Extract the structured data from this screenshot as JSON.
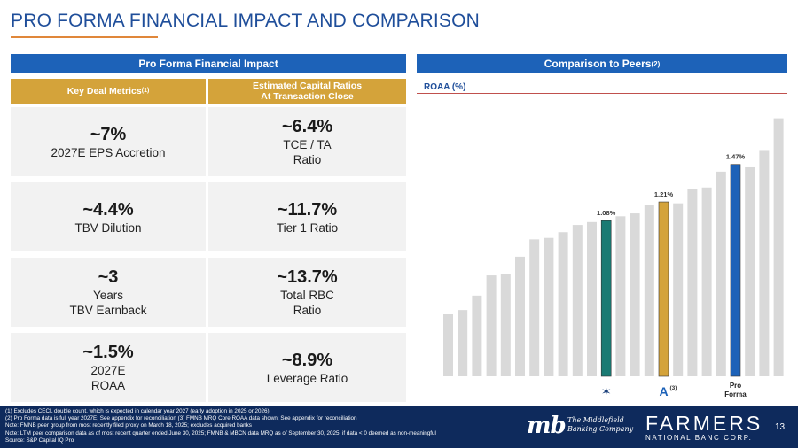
{
  "title": "PRO FORMA FINANCIAL IMPACT AND COMPARISON",
  "left_header": "Pro Forma Financial Impact",
  "right_header": "Comparison to Peers",
  "right_header_note": "(2)",
  "col1_header": "Key Deal Metrics",
  "col1_header_note": "(1)",
  "col2_header_line1": "Estimated Capital Ratios",
  "col2_header_line2": "At Transaction Close",
  "metrics_left": [
    {
      "value": "~7%",
      "label1": "2027E EPS Accretion",
      "label2": ""
    },
    {
      "value": "~4.4%",
      "label1": "TBV Dilution",
      "label2": ""
    },
    {
      "value": "~3",
      "label1": "Years",
      "label2": "TBV Earnback"
    },
    {
      "value": "~1.5%",
      "label1": "2027E",
      "label2": "ROAA"
    }
  ],
  "metrics_right": [
    {
      "value": "~6.4%",
      "label1": "TCE / TA",
      "label2": "Ratio"
    },
    {
      "value": "~11.7%",
      "label1": "Tier 1 Ratio",
      "label2": ""
    },
    {
      "value": "~13.7%",
      "label1": "Total RBC",
      "label2": "Ratio"
    },
    {
      "value": "~8.9%",
      "label1": "Leverage Ratio",
      "label2": ""
    }
  ],
  "chart_data": {
    "type": "bar",
    "title": "ROAA (%)",
    "ylim": [
      0,
      1.8
    ],
    "values": [
      0.43,
      0.46,
      0.56,
      0.7,
      0.71,
      0.83,
      0.95,
      0.96,
      1.0,
      1.05,
      1.07,
      1.08,
      1.11,
      1.13,
      1.19,
      1.21,
      1.2,
      1.3,
      1.31,
      1.42,
      1.47,
      1.45,
      1.57,
      1.79
    ],
    "highlights": [
      {
        "index": 11,
        "label": "1.08%",
        "color": "#1a7a73"
      },
      {
        "index": 15,
        "label": "1.21%",
        "color": "#d4a33a"
      },
      {
        "index": 20,
        "label": "1.47%",
        "color": "#1d62b8"
      }
    ],
    "default_color": "#d9d9d9",
    "marker_note": "(3)",
    "pro_forma_label_1": "Pro",
    "pro_forma_label_2": "Forma"
  },
  "footnotes": [
    "(1) Excludes CECL double count, which is expected in calendar year 2027 (early adoption in 2025 or 2026)",
    "(2) Pro Forma data is full year 2027E; See appendix for reconciliation (3) FMNB MRQ Core ROAA data shown; See appendix for reconciliation",
    "Note: FMNB peer group from most recently filed proxy on March 18, 2025; excludes acquired banks",
    "Note: LTM peer comparison data as of most recent quarter ended June 30, 2025; FMNB & MBCN data MRQ as of September 30, 2025; if data < 0 deemed as non-meaningful",
    "Source: S&P Capital IQ Pro"
  ],
  "mb_logo": "mb",
  "mb_name_line1": "The Middlefield",
  "mb_name_line2": "Banking Company",
  "farmers_name": "FARMERS",
  "farmers_sub": "NATIONAL BANC CORP.",
  "page_number": "13"
}
